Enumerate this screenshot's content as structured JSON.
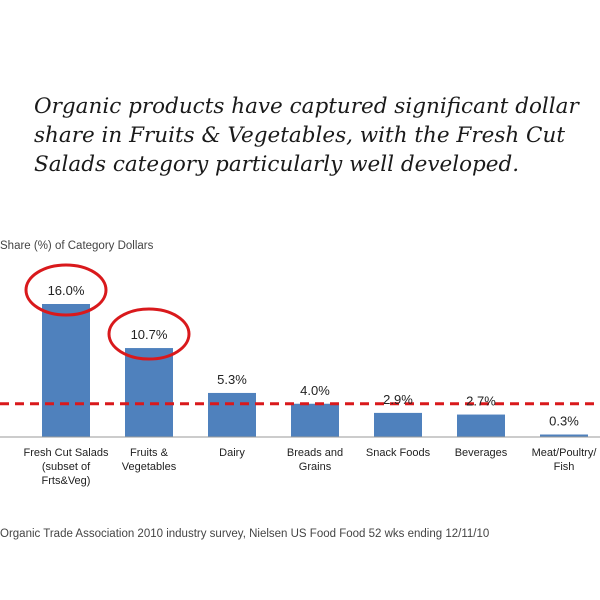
{
  "headline": {
    "lines": [
      "Organic products have captured significant dollar",
      "share in Fruits & Vegetables, with the Fresh Cut",
      "Salads category particularly well developed."
    ]
  },
  "source": "Organic Trade Association 2010 industry survey, Nielsen US Food Food 52 wks ending 12/11/10",
  "colors": {
    "bar": "#4F81BD",
    "highlight": "#D9191C",
    "reference_line": "#D9191C"
  },
  "chart_data": {
    "type": "bar",
    "title": "",
    "ylabel": "Share (%) of Category Dollars",
    "categories": [
      [
        "Fresh Cut Salads",
        "(subset of",
        "Frts&Veg)"
      ],
      [
        "Fruits &",
        "Vegetables"
      ],
      [
        "Dairy"
      ],
      [
        "Breads and",
        "Grains"
      ],
      [
        "Snack Foods"
      ],
      [
        "Beverages"
      ],
      [
        "Meat/Poultry/",
        "Fish"
      ]
    ],
    "values": [
      16.0,
      10.7,
      5.3,
      4.0,
      2.9,
      2.7,
      0.3
    ],
    "value_labels": [
      "16.0%",
      "10.7%",
      "5.3%",
      "4.0%",
      "2.9%",
      "2.7%",
      "0.3%"
    ],
    "highlighted": [
      0,
      1
    ],
    "reference_line": 4.0,
    "ylim": [
      0,
      16.5
    ],
    "grid": false,
    "legend": "none"
  }
}
